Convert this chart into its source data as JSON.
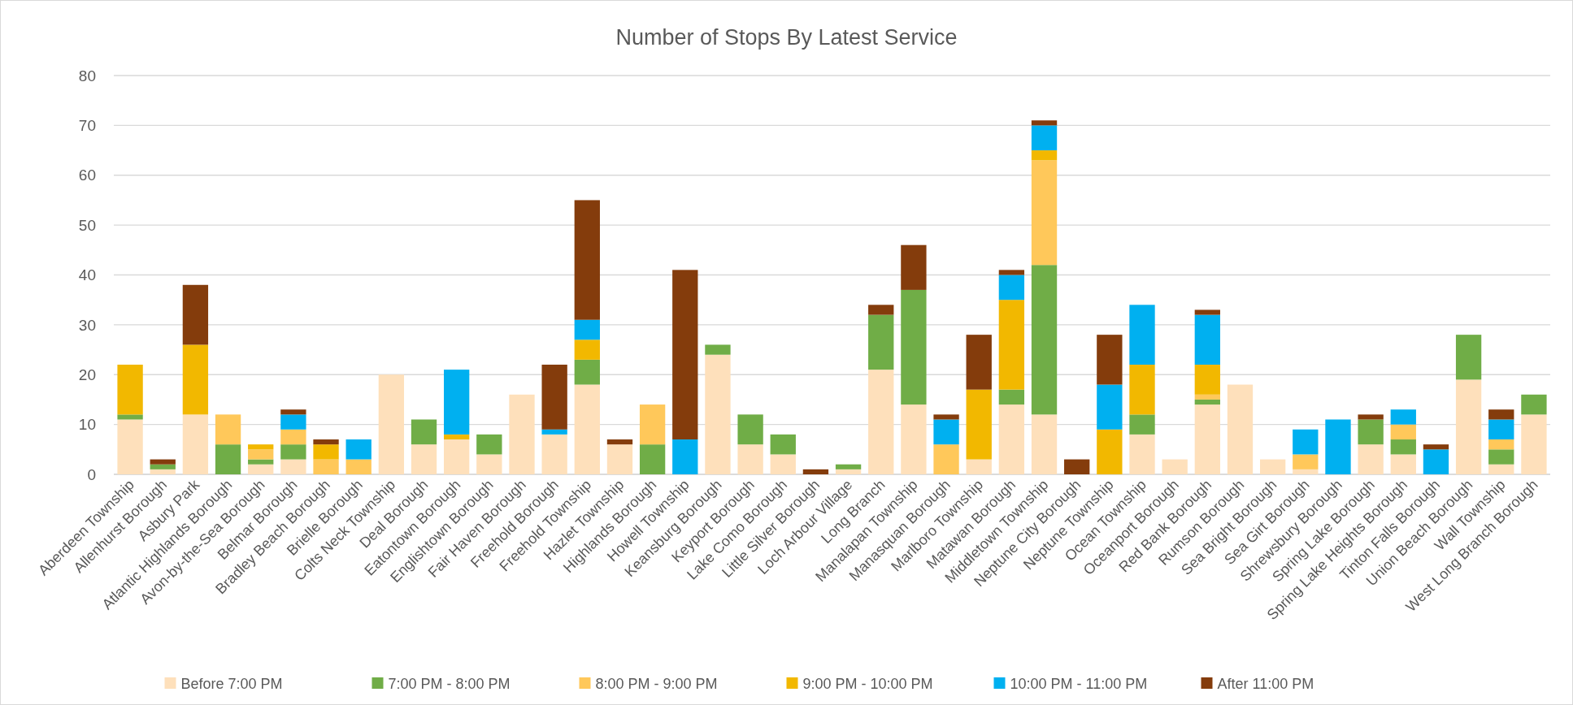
{
  "chart_data": {
    "type": "bar",
    "title": "Number of Stops By Latest Service",
    "stacked": true,
    "grid": "y",
    "legend": "bottom",
    "categories": [
      "Aberdeen Township",
      "Allenhurst Borough",
      "Asbury Park",
      "Atlantic Highlands Borough",
      "Avon-by-the-Sea Borough",
      "Belmar Borough",
      "Bradley Beach Borough",
      "Brielle Borough",
      "Colts Neck Township",
      "Deal Borough",
      "Eatontown Borough",
      "Englishtown Borough",
      "Fair Haven Borough",
      "Freehold Borough",
      "Freehold Township",
      "Hazlet Township",
      "Highlands Borough",
      "Howell Township",
      "Keansburg Borough",
      "Keyport Borough",
      "Lake Como Borough",
      "Little Silver Borough",
      "Loch Arbour Village",
      "Long Branch",
      "Manalapan Township",
      "Manasquan Borough",
      "Marlboro Township",
      "Matawan Borough",
      "Middletown Township",
      "Neptune City Borough",
      "Neptune Township",
      "Ocean Township",
      "Oceanport Borough",
      "Red Bank Borough",
      "Rumson Borough",
      "Sea Bright Borough",
      "Sea Girt Borough",
      "Shrewsbury Borough",
      "Spring Lake Borough",
      "Spring Lake Heights Borough",
      "Tinton Falls Borough",
      "Union Beach Borough",
      "Wall Township",
      "West Long Branch Borough"
    ],
    "series": [
      {
        "name": "Before 7:00 PM",
        "color": "#fee0bb",
        "values": [
          11,
          1,
          12,
          0,
          2,
          3,
          0,
          0,
          20,
          6,
          7,
          4,
          16,
          8,
          18,
          6,
          0,
          0,
          24,
          6,
          4,
          0,
          1,
          21,
          14,
          0,
          3,
          14,
          12,
          0,
          0,
          8,
          3,
          14,
          18,
          3,
          1,
          0,
          6,
          4,
          0,
          19,
          2,
          12
        ]
      },
      {
        "name": "7:00 PM - 8:00 PM",
        "color": "#70ad47",
        "values": [
          1,
          1,
          0,
          6,
          1,
          3,
          0,
          0,
          0,
          5,
          0,
          4,
          0,
          0,
          5,
          0,
          6,
          0,
          2,
          6,
          4,
          0,
          1,
          11,
          23,
          0,
          0,
          3,
          30,
          0,
          0,
          4,
          0,
          1,
          0,
          0,
          0,
          0,
          5,
          3,
          0,
          9,
          3,
          4
        ]
      },
      {
        "name": "8:00 PM - 9:00 PM",
        "color": "#ffc85a",
        "values": [
          0,
          0,
          0,
          6,
          2,
          3,
          3,
          3,
          0,
          0,
          0,
          0,
          0,
          0,
          0,
          0,
          8,
          0,
          0,
          0,
          0,
          0,
          0,
          0,
          0,
          6,
          0,
          0,
          21,
          0,
          0,
          0,
          0,
          1,
          0,
          0,
          3,
          0,
          0,
          3,
          0,
          0,
          2,
          0
        ]
      },
      {
        "name": "9:00 PM - 10:00 PM",
        "color": "#f2b800",
        "values": [
          10,
          0,
          14,
          0,
          1,
          0,
          3,
          0,
          0,
          0,
          1,
          0,
          0,
          0,
          4,
          0,
          0,
          0,
          0,
          0,
          0,
          0,
          0,
          0,
          0,
          0,
          14,
          18,
          2,
          0,
          9,
          10,
          0,
          6,
          0,
          0,
          0,
          0,
          0,
          0,
          0,
          0,
          0,
          0
        ]
      },
      {
        "name": "10:00 PM - 11:00 PM",
        "color": "#00b0f0",
        "values": [
          0,
          0,
          0,
          0,
          0,
          3,
          0,
          4,
          0,
          0,
          13,
          0,
          0,
          1,
          4,
          0,
          0,
          7,
          0,
          0,
          0,
          0,
          0,
          0,
          0,
          5,
          0,
          5,
          5,
          0,
          9,
          12,
          0,
          10,
          0,
          0,
          5,
          11,
          0,
          3,
          5,
          0,
          4,
          0
        ]
      },
      {
        "name": "After 11:00 PM",
        "color": "#843c0c",
        "values": [
          0,
          1,
          12,
          0,
          0,
          1,
          1,
          0,
          0,
          0,
          0,
          0,
          0,
          13,
          24,
          1,
          0,
          34,
          0,
          0,
          0,
          1,
          0,
          2,
          9,
          1,
          11,
          1,
          1,
          3,
          10,
          0,
          0,
          1,
          0,
          0,
          0,
          0,
          1,
          0,
          1,
          0,
          2,
          0
        ]
      }
    ],
    "ylim": [
      0,
      80
    ],
    "yticks": [
      0,
      10,
      20,
      30,
      40,
      50,
      60,
      70,
      80
    ]
  }
}
